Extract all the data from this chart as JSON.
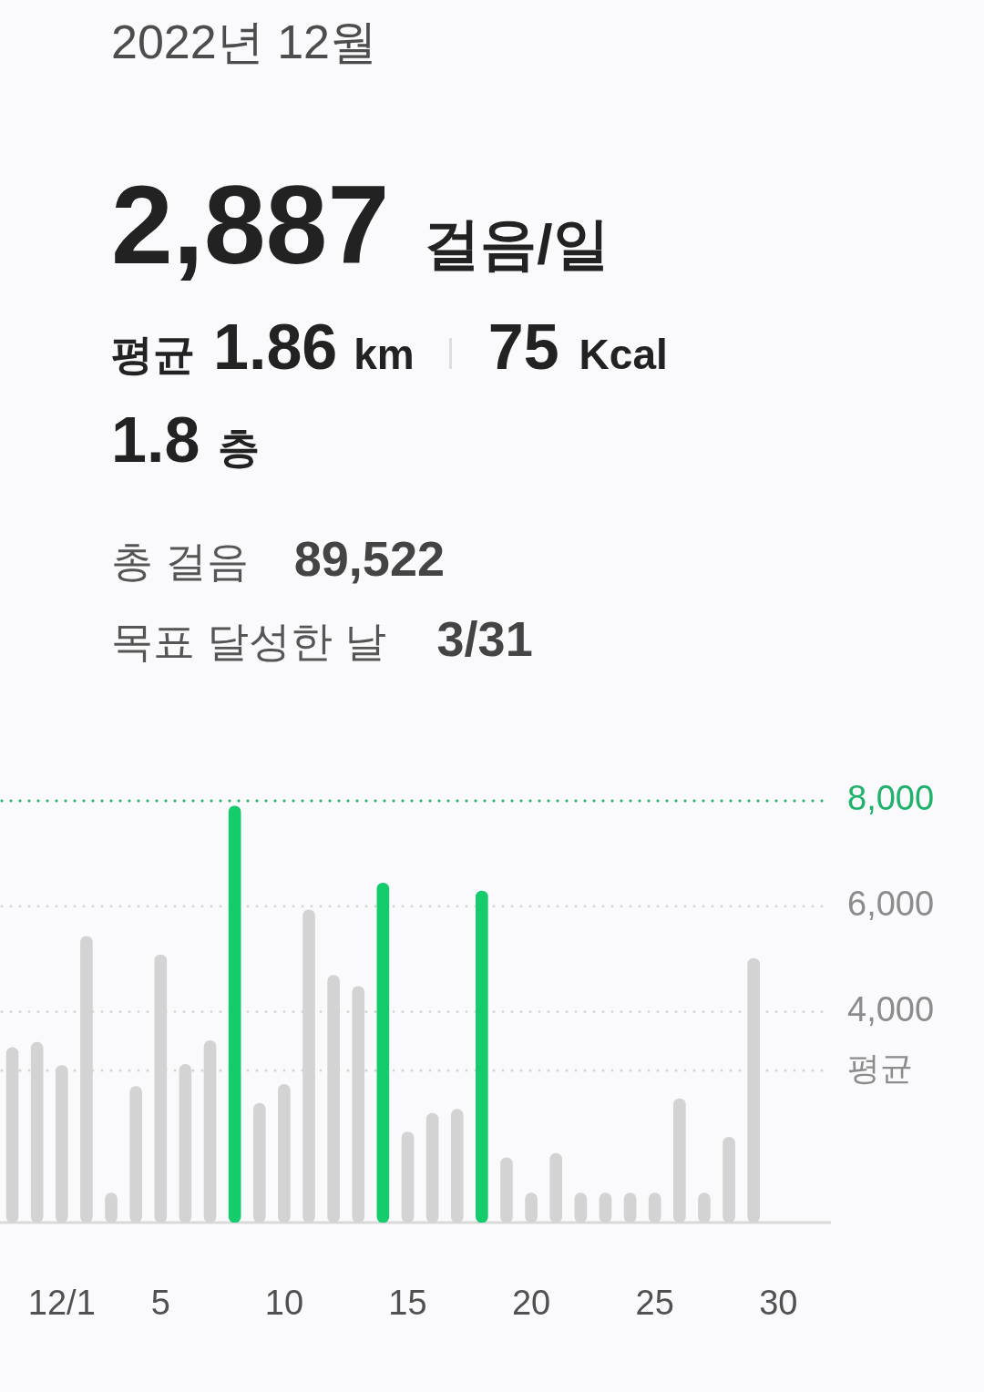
{
  "chart_data": {
    "type": "bar",
    "title": "2022년 12월",
    "annotations": [
      "2,887",
      "걸음/일",
      "평균",
      "1.86",
      "km",
      "75",
      "Kcal",
      "1.8",
      "층",
      "총 걸음",
      "89,522",
      "목표 달성한 날",
      "3/31"
    ],
    "categories": [
      null,
      null,
      "12/1",
      null,
      null,
      null,
      "5",
      null,
      null,
      null,
      null,
      "10",
      null,
      null,
      null,
      null,
      "15",
      null,
      null,
      null,
      null,
      "20",
      null,
      null,
      null,
      null,
      "25",
      null,
      null,
      null,
      null,
      "30",
      null
    ],
    "values": [
      3320,
      3420,
      2980,
      5430,
      560,
      2580,
      5080,
      3000,
      3450,
      7900,
      2260,
      2620,
      5930,
      4690,
      4480,
      6440,
      1720,
      2070,
      2150,
      6290,
      1230,
      560,
      1310,
      560,
      560,
      560,
      560,
      2350,
      560,
      1620,
      5010,
      null,
      null
    ],
    "colors": [
      "#d3d3d3",
      "#d3d3d3",
      "#d3d3d3",
      "#d3d3d3",
      "#d3d3d3",
      "#d3d3d3",
      "#d3d3d3",
      "#d3d3d3",
      "#d3d3d3",
      "#15cc6d",
      "#d3d3d3",
      "#d3d3d3",
      "#d3d3d3",
      "#d3d3d3",
      "#d3d3d3",
      "#15cc6d",
      "#d3d3d3",
      "#d3d3d3",
      "#d3d3d3",
      "#15cc6d",
      "#d3d3d3",
      "#d3d3d3",
      "#d3d3d3",
      "#d3d3d3",
      "#d3d3d3",
      "#d3d3d3",
      "#d3d3d3",
      "#d3d3d3",
      "#d3d3d3",
      "#d3d3d3",
      "#d3d3d3",
      "#d3d3d3",
      "#d3d3d3"
    ],
    "ylim": [
      0,
      8000
    ],
    "yticks": [
      {
        "value": 4000,
        "label": "4,000"
      },
      {
        "value": 6000,
        "label": "6,000"
      },
      {
        "value": 8000,
        "label": "8,000"
      }
    ],
    "grid": "y",
    "ref_lines": [
      {
        "axis": "y",
        "value": 8000,
        "color": "#1fb26a",
        "line_style": "dotted"
      },
      {
        "axis": "y",
        "value": 2887,
        "label": "평균",
        "color": "#d4d4d4",
        "line_style": "dotted"
      }
    ]
  }
}
